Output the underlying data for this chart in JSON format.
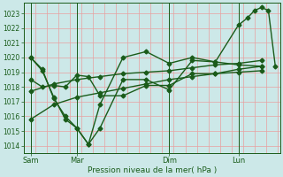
{
  "xlabel": "Pression niveau de la mer( hPa )",
  "bg_color": "#cce8e8",
  "plot_bg_color": "#cce8e8",
  "line_color": "#1a5c1a",
  "grid_color_h": "#e8a0a0",
  "grid_color_v": "#e8a0a0",
  "tick_label_color": "#1a5c1a",
  "spine_color": "#1a5c1a",
  "ylim": [
    1013.5,
    1023.7
  ],
  "yticks": [
    1014,
    1015,
    1016,
    1017,
    1018,
    1019,
    1020,
    1021,
    1022,
    1023
  ],
  "x_tick_labels": [
    "Sam",
    "Mar",
    "Dim",
    "Lun"
  ],
  "x_tick_positions": [
    0,
    2,
    6,
    9
  ],
  "x_vlines": [
    0,
    2,
    6,
    9
  ],
  "xlim": [
    -0.3,
    10.8
  ],
  "series": [
    {
      "x": [
        0,
        0.5,
        1.0,
        1.5,
        2.0,
        2.5,
        3.0,
        4.0,
        5.0,
        6.0,
        7.0,
        8.0,
        9.0,
        10.0
      ],
      "y": [
        1020.0,
        1019.1,
        1017.3,
        1015.8,
        1015.2,
        1014.1,
        1015.2,
        1018.5,
        1018.5,
        1017.8,
        1019.8,
        1019.7,
        1019.5,
        1019.4
      ]
    },
    {
      "x": [
        0,
        0.5,
        1.0,
        1.5,
        2.0,
        2.5,
        3.0,
        4.0,
        5.0,
        6.0,
        7.0,
        8.0,
        9.0,
        10.0
      ],
      "y": [
        1018.5,
        1018.0,
        1018.1,
        1018.0,
        1018.8,
        1018.7,
        1017.4,
        1017.4,
        1018.1,
        1018.1,
        1018.9,
        1018.9,
        1019.0,
        1019.1
      ]
    },
    {
      "x": [
        0,
        1.0,
        2.0,
        3.0,
        4.0,
        5.0,
        6.0,
        7.0,
        8.0,
        9.0,
        10.0
      ],
      "y": [
        1017.7,
        1018.2,
        1018.5,
        1018.7,
        1018.9,
        1019.0,
        1019.1,
        1019.3,
        1019.5,
        1019.6,
        1019.8
      ]
    },
    {
      "x": [
        0,
        1.0,
        2.0,
        3.0,
        4.0,
        5.0,
        6.0,
        7.0,
        8.0,
        9.0,
        10.0
      ],
      "y": [
        1015.8,
        1016.8,
        1017.3,
        1017.6,
        1017.9,
        1018.2,
        1018.5,
        1018.7,
        1018.9,
        1019.2,
        1019.4
      ]
    },
    {
      "x": [
        0,
        0.5,
        1.0,
        1.5,
        2.0,
        2.5,
        3.0,
        4.0,
        5.0,
        6.0,
        7.0,
        8.0,
        9.0,
        9.4,
        9.7,
        10.0,
        10.3,
        10.6
      ],
      "y": [
        1020.0,
        1019.2,
        1017.2,
        1016.0,
        1015.2,
        1014.1,
        1016.8,
        1020.0,
        1020.4,
        1019.6,
        1020.0,
        1019.7,
        1022.2,
        1022.7,
        1023.2,
        1023.4,
        1023.2,
        1019.4
      ]
    }
  ],
  "marker": "D",
  "marker_size": 2.5,
  "line_width": 1.0
}
